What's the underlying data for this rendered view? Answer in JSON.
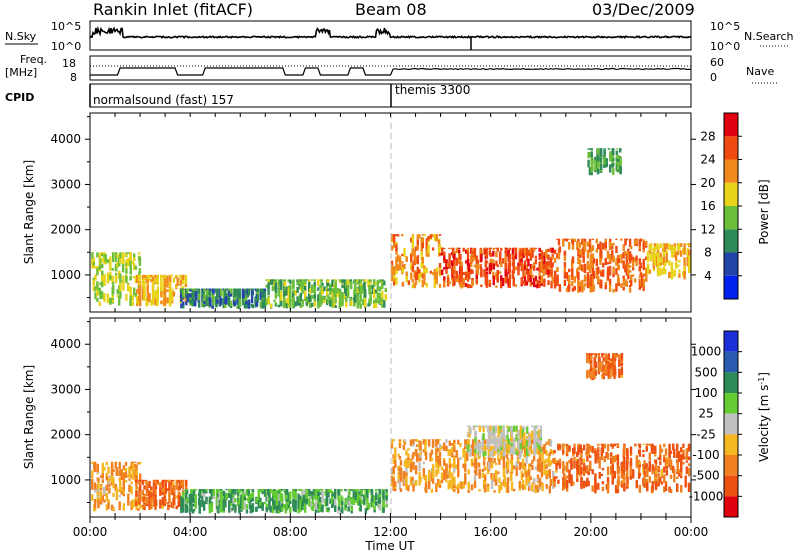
{
  "header": {
    "station": "Rankin Inlet (fitACF)",
    "beam": "Beam 08",
    "date": "03/Dec/2009"
  },
  "strip": {
    "nsky_label": "N.Sky",
    "nsearch_label": "N.Search",
    "nsky_ticks": [
      "10^5",
      "10^0"
    ],
    "nsearch_ticks": [
      "10^5",
      "10^0"
    ],
    "freq_label_1": "Freq.",
    "freq_label_2": "[MHz]",
    "freq_ticks": [
      "18",
      "8"
    ],
    "nave_label": "Nave",
    "nave_ticks": [
      "60",
      "0"
    ],
    "cpid_label": "CPID",
    "cpid_segments": [
      {
        "name": "normalsound (fast) 157",
        "start": "00:00",
        "end": "12:00"
      },
      {
        "name": "themis 3300",
        "start": "12:00",
        "end": "24:00"
      }
    ]
  },
  "chart_data": [
    {
      "type": "heatmap",
      "quantity": "Power",
      "ylabel": "Slant Range [km]",
      "yticks": [
        1000,
        2000,
        3000,
        4000
      ],
      "ylim": [
        180,
        4580
      ],
      "xlim": [
        "00:00",
        "24:00"
      ],
      "colorbar": {
        "label": "Power [dB]",
        "ticks": [
          "4",
          "8",
          "12",
          "16",
          "20",
          "24",
          "28"
        ],
        "range": [
          0,
          32
        ],
        "colors": [
          "#0022ee",
          "#2244aa",
          "#2e8b57",
          "#6cbf3a",
          "#e8d418",
          "#f08a1c",
          "#f04a10",
          "#e00010"
        ]
      },
      "regions": [
        {
          "t0": 0.0,
          "t1": 2.0,
          "r0": 300,
          "r1": 1500,
          "level": 16
        },
        {
          "t0": 1.8,
          "t1": 3.8,
          "r0": 300,
          "r1": 1000,
          "level": 20
        },
        {
          "t0": 3.6,
          "t1": 7.0,
          "r0": 250,
          "r1": 700,
          "level": 10
        },
        {
          "t0": 7.0,
          "t1": 11.8,
          "r0": 250,
          "r1": 900,
          "level": 14
        },
        {
          "t0": 12.0,
          "t1": 14.0,
          "r0": 700,
          "r1": 1900,
          "level": 22
        },
        {
          "t0": 14.0,
          "t1": 18.5,
          "r0": 700,
          "r1": 1600,
          "level": 26
        },
        {
          "t0": 18.5,
          "t1": 22.2,
          "r0": 600,
          "r1": 1800,
          "level": 24
        },
        {
          "t0": 22.2,
          "t1": 23.9,
          "r0": 900,
          "r1": 1700,
          "level": 20
        },
        {
          "t0": 19.8,
          "t1": 21.2,
          "r0": 3200,
          "r1": 3800,
          "level": 12
        }
      ]
    },
    {
      "type": "heatmap",
      "quantity": "Velocity",
      "ylabel": "Slant Range [km]",
      "yticks": [
        1000,
        2000,
        3000,
        4000
      ],
      "ylim": [
        180,
        4580
      ],
      "xlim": [
        "00:00",
        "24:00"
      ],
      "xticks": [
        "00:00",
        "04:00",
        "08:00",
        "12:00",
        "16:00",
        "20:00",
        "00:00"
      ],
      "xlabel": "Time UT",
      "colorbar": {
        "label": "Velocity [m s^-1]",
        "ticks": [
          "1000",
          "500",
          "100",
          "25",
          "-25",
          "-100",
          "-500",
          "-1000"
        ],
        "colors": [
          "#1a2fd8",
          "#2a5bb0",
          "#2e8b57",
          "#66cc33",
          "#c0c0c0",
          "#f5b722",
          "#f08020",
          "#ee5010",
          "#e00010"
        ]
      },
      "regions": [
        {
          "t0": 0.0,
          "t1": 2.0,
          "r0": 300,
          "r1": 1400,
          "level": -100
        },
        {
          "t0": 1.8,
          "t1": 3.8,
          "r0": 300,
          "r1": 1000,
          "level": -500
        },
        {
          "t0": 3.6,
          "t1": 11.8,
          "r0": 250,
          "r1": 800,
          "level": 100
        },
        {
          "t0": 12.0,
          "t1": 18.5,
          "r0": 700,
          "r1": 1900,
          "level": -100
        },
        {
          "t0": 15.0,
          "t1": 18.0,
          "r0": 1500,
          "r1": 2200,
          "level": 0
        },
        {
          "t0": 18.5,
          "t1": 23.9,
          "r0": 700,
          "r1": 1800,
          "level": -500
        },
        {
          "t0": 19.8,
          "t1": 21.2,
          "r0": 3200,
          "r1": 3800,
          "level": -500
        }
      ]
    }
  ]
}
